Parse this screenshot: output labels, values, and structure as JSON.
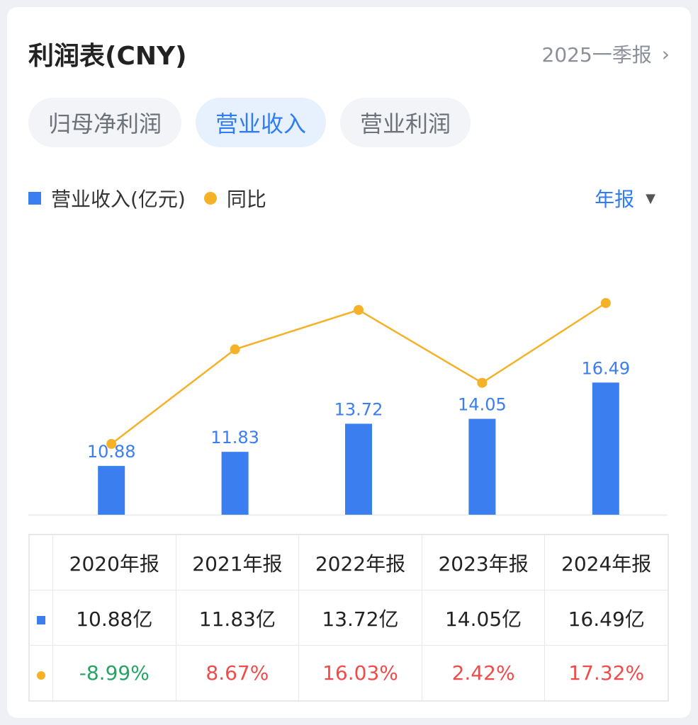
{
  "header": {
    "title": "利润表(CNY)",
    "period_link": "2025一季报",
    "chevron": "›"
  },
  "tabs": [
    {
      "label": "归母净利润",
      "active": false
    },
    {
      "label": "营业收入",
      "active": true
    },
    {
      "label": "营业利润",
      "active": false
    }
  ],
  "legend": {
    "bar_label": "营业收入(亿元)",
    "line_label": "同比"
  },
  "period_select": {
    "label": "年报",
    "caret": "▼"
  },
  "colors": {
    "bar": "#3a7ef0",
    "line": "#f5b127",
    "positive": "#f04b4b",
    "negative": "#27a465",
    "accent": "#2f7cf6"
  },
  "chart_data": {
    "type": "bar",
    "categories": [
      "2020年报",
      "2021年报",
      "2022年报",
      "2023年报",
      "2024年报"
    ],
    "series": [
      {
        "name": "营业收入(亿元)",
        "type": "bar",
        "values": [
          10.88,
          11.83,
          13.72,
          14.05,
          16.49
        ],
        "data_labels": [
          "10.88",
          "11.83",
          "13.72",
          "14.05",
          "16.49"
        ]
      },
      {
        "name": "同比",
        "type": "line",
        "values": [
          -8.99,
          8.67,
          16.03,
          2.42,
          17.32
        ]
      }
    ],
    "legend_position": "top-left",
    "grid": false
  },
  "table": {
    "headers": [
      "2020年报",
      "2021年报",
      "2022年报",
      "2023年报",
      "2024年报"
    ],
    "revenue_row": [
      "10.88亿",
      "11.83亿",
      "13.72亿",
      "14.05亿",
      "16.49亿"
    ],
    "yoy_row": [
      "-8.99%",
      "8.67%",
      "16.03%",
      "2.42%",
      "17.32%"
    ]
  }
}
